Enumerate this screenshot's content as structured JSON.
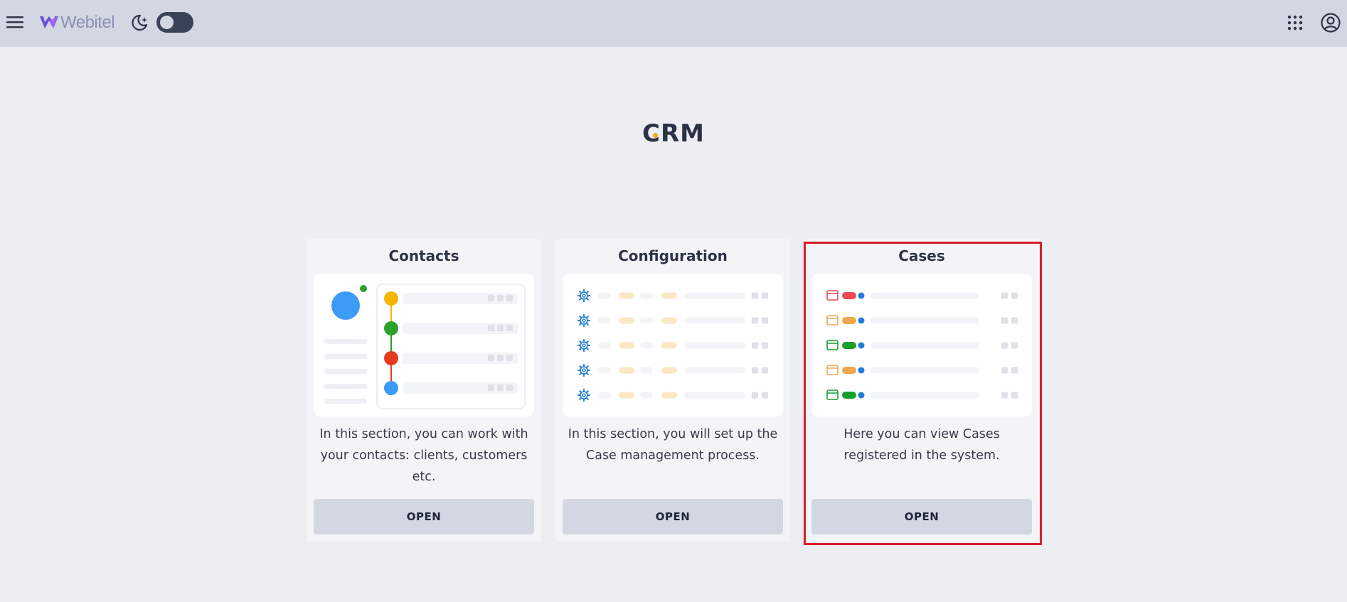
{
  "header": {
    "brand": "Webitel",
    "icons": {
      "menu": "hamburger-menu-icon",
      "logo": "webitel-logo-icon",
      "theme": "moon-stars-icon",
      "apps": "apps-grid-icon",
      "user": "user-account-icon"
    },
    "theme_toggle_on": false
  },
  "page": {
    "title": "CRM"
  },
  "cards": [
    {
      "title": "Contacts",
      "description": "In this section, you can work with your contacts: clients, customers etc.",
      "button": "OPEN"
    },
    {
      "title": "Configuration",
      "description": "In this section, you will set up the Case management process.",
      "button": "OPEN"
    },
    {
      "title": "Cases",
      "description": "Here you can view Cases registered in the system.",
      "button": "OPEN"
    }
  ],
  "colors": {
    "accent_blue": "#3e9bf5",
    "green": "#2ba02b",
    "red": "#e53a1f",
    "yellow": "#f7b500",
    "highlight": "#d81e27",
    "case_red": "#e84b55",
    "case_orange": "#efa650",
    "case_green": "#17a02b"
  },
  "previews": {
    "contacts_timeline_colors": [
      "#f7b500",
      "#2ba02b",
      "#e53a1f",
      "#3e9bf5"
    ],
    "cases_status_colors": [
      "#e84b55",
      "#efa650",
      "#17a02b",
      "#efa650",
      "#17a02b"
    ],
    "config_rows": 5
  }
}
